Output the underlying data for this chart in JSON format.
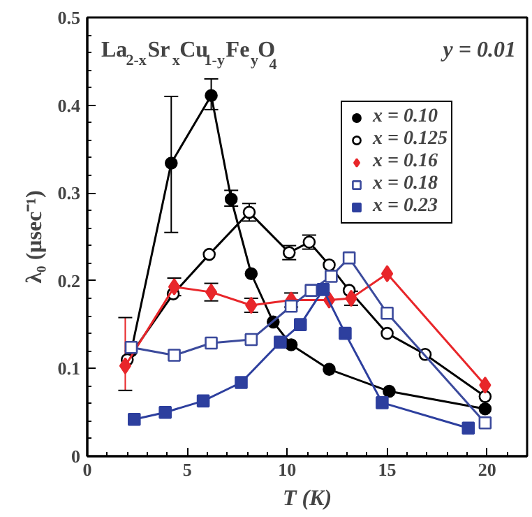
{
  "chart_data": {
    "type": "line",
    "title": "La$_{2-x}$Sr$_{x}$Cu$_{1-y}$Fe$_{y}$O$_{4}$",
    "xlabel": "T (K)",
    "ylabel": "λ₀ (μsec⁻¹)",
    "annotations": [
      "y = 0.01"
    ],
    "xlim": [
      0,
      22
    ],
    "ylim": [
      0,
      0.5
    ],
    "xticks": [
      0,
      5,
      10,
      15,
      20
    ],
    "yticks": [
      0,
      0.1,
      0.2,
      0.3,
      0.4,
      0.5
    ],
    "grid": false,
    "legend": "top right",
    "series": [
      {
        "name": "x = 0.10",
        "color": "#000000",
        "marker": "circle",
        "x": [
          2.2,
          4.2,
          6.2,
          7.2,
          8.2,
          9.3,
          10.2,
          12.1,
          15.1,
          19.9
        ],
        "values": [
          0.12,
          0.334,
          0.411,
          0.293,
          0.208,
          0.153,
          0.127,
          0.099,
          0.074,
          0.054
        ],
        "errors": [
          null,
          [
            0.255,
            0.41
          ],
          [
            0.395,
            0.43
          ],
          [
            0.285,
            0.303
          ],
          null,
          null,
          null,
          null,
          null,
          null
        ]
      },
      {
        "name": "x = 0.125",
        "color": "#000000",
        "marker": "circle_open",
        "x": [
          2.0,
          4.3,
          6.1,
          8.1,
          10.1,
          11.1,
          12.1,
          13.1,
          15.0,
          16.9,
          19.9
        ],
        "values": [
          0.11,
          0.185,
          0.23,
          0.278,
          0.232,
          0.244,
          0.218,
          0.189,
          0.14,
          0.116,
          0.068
        ],
        "errors": [
          null,
          null,
          null,
          [
            0.268,
            0.288
          ],
          [
            0.224,
            0.24
          ],
          [
            0.236,
            0.252
          ],
          null,
          null,
          null,
          null,
          null
        ]
      },
      {
        "name": "x = 0.16",
        "color": "#e8262a",
        "marker": "diamond",
        "x": [
          1.9,
          4.35,
          6.2,
          8.2,
          10.2,
          12.1,
          13.2,
          15.0,
          19.9
        ],
        "values": [
          0.103,
          0.193,
          0.187,
          0.172,
          0.178,
          0.178,
          0.18,
          0.208,
          0.081
        ],
        "errors": [
          [
            0.075,
            0.158
          ],
          [
            0.183,
            0.203
          ],
          [
            0.177,
            0.197
          ],
          [
            0.164,
            0.18
          ],
          [
            0.17,
            0.186
          ],
          null,
          [
            0.172,
            0.188
          ],
          null,
          null
        ]
      },
      {
        "name": "x = 0.18",
        "color": "#3b4a9c",
        "marker": "square_open",
        "x": [
          2.2,
          4.35,
          6.2,
          8.2,
          10.2,
          11.2,
          12.2,
          13.1,
          15.0,
          19.9
        ],
        "values": [
          0.124,
          0.115,
          0.129,
          0.133,
          0.171,
          0.189,
          0.205,
          0.226,
          0.163,
          0.038
        ]
      },
      {
        "name": "x = 0.23",
        "color": "#2d3f9e",
        "marker": "square",
        "x": [
          2.35,
          3.9,
          5.8,
          7.7,
          9.65,
          10.66,
          11.8,
          12.9,
          14.75,
          19.06
        ],
        "values": [
          0.042,
          0.05,
          0.063,
          0.084,
          0.13,
          0.15,
          0.19,
          0.14,
          0.061,
          0.032
        ]
      }
    ]
  }
}
